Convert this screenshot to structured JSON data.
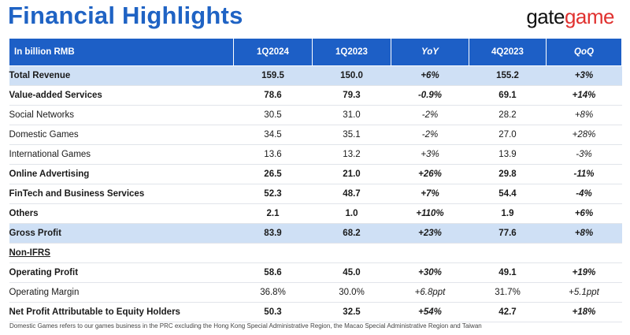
{
  "title": "Financial Highlights",
  "logo": {
    "part1": "gate",
    "part2": "game"
  },
  "table": {
    "headers": [
      "In billion RMB",
      "1Q2024",
      "1Q2023",
      "YoY",
      "4Q2023",
      "QoQ"
    ],
    "rows": [
      {
        "label": "Total Revenue",
        "values": [
          "159.5",
          "150.0",
          "+6%",
          "155.2",
          "+3%"
        ]
      },
      {
        "label": "Value-added Services",
        "values": [
          "78.6",
          "79.3",
          "-0.9%",
          "69.1",
          "+14%"
        ]
      },
      {
        "label": "Social Networks",
        "values": [
          "30.5",
          "31.0",
          "-2%",
          "28.2",
          "+8%"
        ]
      },
      {
        "label": "Domestic Games",
        "values": [
          "34.5",
          "35.1",
          "-2%",
          "27.0",
          "+28%"
        ]
      },
      {
        "label": "International Games",
        "values": [
          "13.6",
          "13.2",
          "+3%",
          "13.9",
          "-3%"
        ]
      },
      {
        "label": "Online Advertising",
        "values": [
          "26.5",
          "21.0",
          "+26%",
          "29.8",
          "-11%"
        ]
      },
      {
        "label": "FinTech and Business Services",
        "values": [
          "52.3",
          "48.7",
          "+7%",
          "54.4",
          "-4%"
        ]
      },
      {
        "label": "Others",
        "values": [
          "2.1",
          "1.0",
          "+110%",
          "1.9",
          "+6%"
        ]
      },
      {
        "label": "Gross Profit",
        "values": [
          "83.9",
          "68.2",
          "+23%",
          "77.6",
          "+8%"
        ]
      },
      {
        "label": "Non-IFRS",
        "values": [
          "",
          "",
          "",
          "",
          ""
        ]
      },
      {
        "label": "Operating Profit",
        "values": [
          "58.6",
          "45.0",
          "+30%",
          "49.1",
          "+19%"
        ]
      },
      {
        "label": "Operating Margin",
        "values": [
          "36.8%",
          "30.0%",
          "+6.8ppt",
          "31.7%",
          "+5.1ppt"
        ]
      },
      {
        "label": "Net Profit Attributable to Equity Holders",
        "values": [
          "50.3",
          "32.5",
          "+54%",
          "42.7",
          "+18%"
        ]
      }
    ]
  },
  "footnote": "Domestic Games refers to our games business in the PRC excluding the Hong Kong Special Administrative Region, the Macao Special Administrative Region and Taiwan"
}
